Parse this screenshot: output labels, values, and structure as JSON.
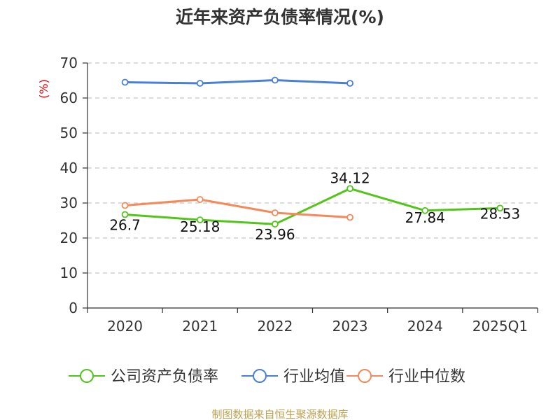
{
  "chart_data": {
    "type": "line",
    "title": "近年来资产负债率情况(%)",
    "y_unit": "(%)",
    "categories": [
      "2020",
      "2021",
      "2022",
      "2023",
      "2024",
      "2025Q1"
    ],
    "ylim": [
      0,
      70
    ],
    "yticks": [
      0,
      10,
      20,
      30,
      40,
      50,
      60,
      70
    ],
    "grid": true,
    "legend_position": "bottom",
    "series": [
      {
        "name": "公司资产负债率",
        "color": "#52c41a",
        "values": [
          26.7,
          25.18,
          23.96,
          34.12,
          27.84,
          28.53
        ],
        "labels": [
          "26.7",
          "25.18",
          "23.96",
          "34.12",
          "27.84",
          "28.53"
        ]
      },
      {
        "name": "行业均值",
        "color": "#4a7fd6",
        "values": [
          64.5,
          64.2,
          65.1,
          64.2,
          null,
          null
        ]
      },
      {
        "name": "行业中位数",
        "color": "#f5895a",
        "values": [
          29.3,
          31.0,
          27.2,
          25.9,
          null,
          null
        ]
      }
    ],
    "source": "制图数据来自恒生聚源数据库"
  }
}
